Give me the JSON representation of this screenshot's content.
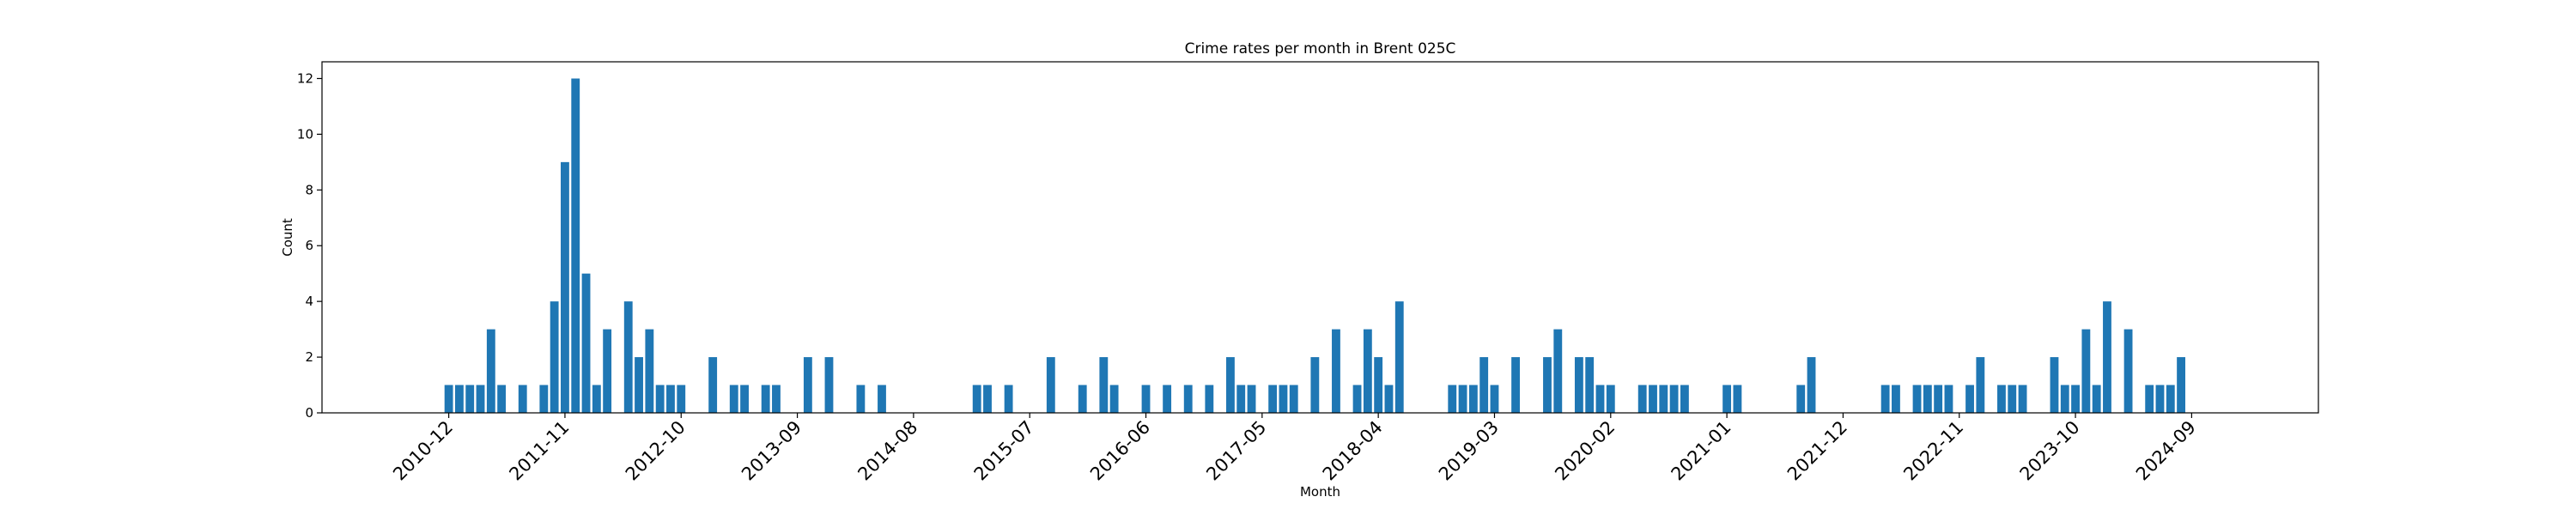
{
  "chart_data": {
    "type": "bar",
    "title": "Crime rates per month in Brent 025C",
    "xlabel": "Month",
    "ylabel": "Count",
    "ylim": [
      0,
      12.6
    ],
    "yticks": [
      0,
      2,
      4,
      6,
      8,
      10,
      12
    ],
    "xticks": [
      "2010-12",
      "2011-11",
      "2012-10",
      "2013-09",
      "2014-08",
      "2015-07",
      "2016-06",
      "2017-05",
      "2018-04",
      "2019-03",
      "2020-02",
      "2021-01",
      "2021-12",
      "2022-11",
      "2023-10",
      "2024-09"
    ],
    "grid": false,
    "color": "#1f77b4",
    "series": [
      {
        "x": [
          "2010-12",
          "2011-01",
          "2011-02",
          "2011-03",
          "2011-04",
          "2011-05",
          "2011-07",
          "2011-09",
          "2011-10",
          "2011-11",
          "2011-12",
          "2012-01",
          "2012-02",
          "2012-03",
          "2012-05",
          "2012-06",
          "2012-07",
          "2012-08",
          "2012-09",
          "2012-10",
          "2013-01",
          "2013-03",
          "2013-04",
          "2013-06",
          "2013-07",
          "2013-10",
          "2013-12",
          "2014-03",
          "2014-05",
          "2015-02",
          "2015-03",
          "2015-05",
          "2015-09",
          "2015-12",
          "2016-02",
          "2016-03",
          "2016-06",
          "2016-08",
          "2016-10",
          "2016-12",
          "2017-02",
          "2017-03",
          "2017-04",
          "2017-06",
          "2017-07",
          "2017-08",
          "2017-10",
          "2017-12",
          "2018-02",
          "2018-03",
          "2018-04",
          "2018-05",
          "2018-06",
          "2018-11",
          "2018-12",
          "2019-01",
          "2019-02",
          "2019-03",
          "2019-05",
          "2019-08",
          "2019-09",
          "2019-11",
          "2019-12",
          "2020-01",
          "2020-02",
          "2020-05",
          "2020-06",
          "2020-07",
          "2020-08",
          "2020-09",
          "2021-01",
          "2021-02",
          "2021-08",
          "2021-09",
          "2022-04",
          "2022-05",
          "2022-07",
          "2022-08",
          "2022-09",
          "2022-10",
          "2022-12",
          "2023-01",
          "2023-03",
          "2023-04",
          "2023-05",
          "2023-08",
          "2023-09",
          "2023-10",
          "2023-11",
          "2023-12",
          "2024-01",
          "2024-03",
          "2024-05",
          "2024-06",
          "2024-07",
          "2024-08"
        ],
        "values": [
          1,
          1,
          1,
          1,
          3,
          1,
          1,
          1,
          4,
          9,
          12,
          5,
          1,
          3,
          4,
          2,
          3,
          1,
          1,
          1,
          2,
          1,
          1,
          1,
          1,
          2,
          2,
          1,
          1,
          1,
          1,
          1,
          2,
          1,
          2,
          1,
          1,
          1,
          1,
          1,
          2,
          1,
          1,
          1,
          1,
          1,
          2,
          3,
          1,
          3,
          2,
          1,
          4,
          1,
          1,
          1,
          2,
          1,
          2,
          2,
          3,
          2,
          2,
          1,
          1,
          1,
          1,
          1,
          1,
          1,
          1,
          1,
          1,
          2,
          1,
          1,
          1,
          1,
          1,
          1,
          1,
          2,
          1,
          1,
          1,
          2,
          1,
          1,
          3,
          1,
          4,
          3,
          1,
          1,
          1,
          2
        ]
      }
    ]
  }
}
